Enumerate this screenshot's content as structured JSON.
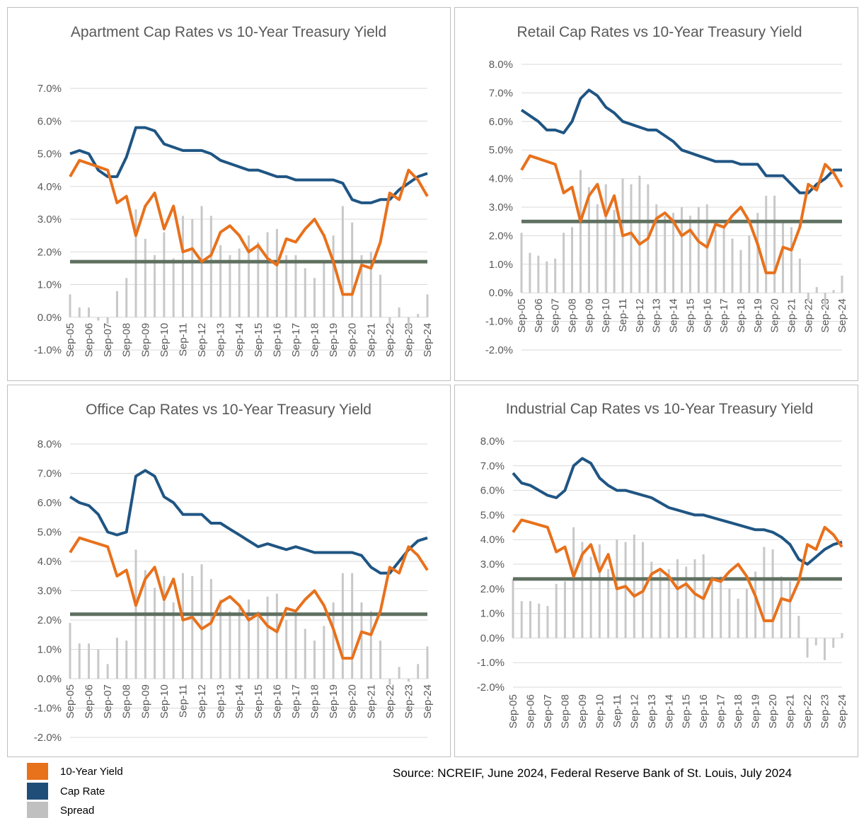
{
  "chart_data": [
    {
      "type": "line-bar",
      "title": "Apartment Cap Rates vs 10-Year Treasury Yield",
      "categories": [
        "Sep-05",
        null,
        "Sep-06",
        null,
        "Sep-07",
        null,
        "Sep-08",
        null,
        "Sep-09",
        null,
        "Sep-10",
        null,
        "Sep-11",
        null,
        "Sep-12",
        null,
        "Sep-13",
        null,
        "Sep-14",
        null,
        "Sep-15",
        null,
        "Sep-16",
        null,
        "Sep-17",
        null,
        "Sep-18",
        null,
        "Sep-19",
        null,
        "Sep-20",
        null,
        "Sep-21",
        null,
        "Sep-22",
        null,
        "Sep-23",
        null,
        "Sep-24"
      ],
      "series": [
        {
          "kind": "bar",
          "color": "#c8c8c8",
          "values": [
            0.7,
            0.3,
            0.3,
            -0.1,
            -0.2,
            0.8,
            1.2,
            3.3,
            2.4,
            1.9,
            2.6,
            1.8,
            3.1,
            3.0,
            3.4,
            3.1,
            2.2,
            1.9,
            2.1,
            2.5,
            2.3,
            2.6,
            2.7,
            1.9,
            1.9,
            1.5,
            1.2,
            1.7,
            2.5,
            3.4,
            2.9,
            1.9,
            2.0,
            1.3,
            -0.2,
            0.3,
            -0.4,
            0.1,
            0.7
          ]
        },
        {
          "kind": "line",
          "color": "#1f5583",
          "values": [
            5.0,
            5.1,
            5.0,
            4.5,
            4.3,
            4.3,
            4.9,
            5.8,
            5.8,
            5.7,
            5.3,
            5.2,
            5.1,
            5.1,
            5.1,
            5.0,
            4.8,
            4.7,
            4.6,
            4.5,
            4.5,
            4.4,
            4.3,
            4.3,
            4.2,
            4.2,
            4.2,
            4.2,
            4.2,
            4.1,
            3.6,
            3.5,
            3.5,
            3.6,
            3.6,
            3.9,
            4.1,
            4.3,
            4.4
          ]
        },
        {
          "kind": "line",
          "color": "#e8711c",
          "values": [
            4.3,
            4.8,
            4.7,
            4.6,
            4.5,
            3.5,
            3.7,
            2.5,
            3.4,
            3.8,
            2.7,
            3.4,
            2.0,
            2.1,
            1.7,
            1.9,
            2.6,
            2.8,
            2.5,
            2.0,
            2.2,
            1.8,
            1.6,
            2.4,
            2.3,
            2.7,
            3.0,
            2.5,
            1.7,
            0.7,
            0.7,
            1.6,
            1.5,
            2.3,
            3.8,
            3.6,
            4.5,
            4.2,
            3.7
          ]
        }
      ],
      "average_line": {
        "value": 1.7,
        "color": "#5f7060"
      },
      "ylim": [
        -1,
        7
      ],
      "yticks": [
        {
          "value": -1,
          "label": "-1.0%"
        },
        {
          "value": 0,
          "label": "0.0%"
        },
        {
          "value": 1,
          "label": "1.0%"
        },
        {
          "value": 2,
          "label": "2.0%"
        },
        {
          "value": 3,
          "label": "3.0%"
        },
        {
          "value": 4,
          "label": "4.0%"
        },
        {
          "value": 5,
          "label": "5.0%"
        },
        {
          "value": 6,
          "label": "6.0%"
        },
        {
          "value": 7,
          "label": "7.0%"
        }
      ],
      "grid": true
    },
    {
      "type": "line-bar",
      "title": "Retail Cap Rates vs 10-Year Treasury Yield",
      "categories": [
        "Sep-05",
        null,
        "Sep-06",
        null,
        "Sep-07",
        null,
        "Sep-08",
        null,
        "Sep-09",
        null,
        "Sep-10",
        null,
        "Sep-11",
        null,
        "Sep-12",
        null,
        "Sep-13",
        null,
        "Sep-14",
        null,
        "Sep-15",
        null,
        "Sep-16",
        null,
        "Sep-17",
        null,
        "Sep-18",
        null,
        "Sep-19",
        null,
        "Sep-20",
        null,
        "Sep-21",
        null,
        "Sep-22",
        null,
        "Sep-23",
        null,
        "Sep-24"
      ],
      "series": [
        {
          "kind": "bar",
          "color": "#c8c8c8",
          "values": [
            2.1,
            1.4,
            1.3,
            1.1,
            1.2,
            2.1,
            2.3,
            4.3,
            3.7,
            3.1,
            3.8,
            2.9,
            4.0,
            3.8,
            4.1,
            3.8,
            3.1,
            2.7,
            2.8,
            3.0,
            2.7,
            3.0,
            3.1,
            2.2,
            2.3,
            1.9,
            1.5,
            2.0,
            2.8,
            3.4,
            3.4,
            2.5,
            2.3,
            1.2,
            -0.3,
            0.2,
            -0.5,
            0.1,
            0.6
          ]
        },
        {
          "kind": "line",
          "color": "#1f5583",
          "values": [
            6.4,
            6.2,
            6.0,
            5.7,
            5.7,
            5.6,
            6.0,
            6.8,
            7.1,
            6.9,
            6.5,
            6.3,
            6.0,
            5.9,
            5.8,
            5.7,
            5.7,
            5.5,
            5.3,
            5.0,
            4.9,
            4.8,
            4.7,
            4.6,
            4.6,
            4.6,
            4.5,
            4.5,
            4.5,
            4.1,
            4.1,
            4.1,
            3.8,
            3.5,
            3.5,
            3.8,
            4.0,
            4.3,
            4.3
          ]
        },
        {
          "kind": "line",
          "color": "#e8711c",
          "values": [
            4.3,
            4.8,
            4.7,
            4.6,
            4.5,
            3.5,
            3.7,
            2.5,
            3.4,
            3.8,
            2.7,
            3.4,
            2.0,
            2.1,
            1.7,
            1.9,
            2.6,
            2.8,
            2.5,
            2.0,
            2.2,
            1.8,
            1.6,
            2.4,
            2.3,
            2.7,
            3.0,
            2.5,
            1.7,
            0.7,
            0.7,
            1.6,
            1.5,
            2.3,
            3.8,
            3.6,
            4.5,
            4.2,
            3.7
          ]
        }
      ],
      "average_line": {
        "value": 2.5,
        "color": "#5f7060"
      },
      "ylim": [
        -2,
        8
      ],
      "yticks": [
        {
          "value": -2,
          "label": "-2.0%"
        },
        {
          "value": -1,
          "label": "-1.0%"
        },
        {
          "value": 0,
          "label": "0.0%"
        },
        {
          "value": 1,
          "label": "1.0%"
        },
        {
          "value": 2,
          "label": "2.0%"
        },
        {
          "value": 3,
          "label": "3.0%"
        },
        {
          "value": 4,
          "label": "4.0%"
        },
        {
          "value": 5,
          "label": "5.0%"
        },
        {
          "value": 6,
          "label": "6.0%"
        },
        {
          "value": 7,
          "label": "7.0%"
        },
        {
          "value": 8,
          "label": "8.0%"
        }
      ],
      "grid": true
    },
    {
      "type": "line-bar",
      "title": "Office Cap Rates vs 10-Year Treasury Yield",
      "categories": [
        "Sep-05",
        null,
        "Sep-06",
        null,
        "Sep-07",
        null,
        "Sep-08",
        null,
        "Sep-09",
        null,
        "Sep-10",
        null,
        "Sep-11",
        null,
        "Sep-12",
        null,
        "Sep-13",
        null,
        "Sep-14",
        null,
        "Sep-15",
        null,
        "Sep-16",
        null,
        "Sep-17",
        null,
        "Sep-18",
        null,
        "Sep-19",
        null,
        "Sep-20",
        null,
        "Sep-21",
        null,
        "Sep-22",
        null,
        "Sep-23",
        null,
        "Sep-24"
      ],
      "series": [
        {
          "kind": "bar",
          "color": "#c8c8c8",
          "values": [
            1.9,
            1.2,
            1.2,
            1.0,
            0.5,
            1.4,
            1.3,
            4.4,
            3.7,
            3.1,
            3.5,
            2.6,
            3.6,
            3.5,
            3.9,
            3.4,
            2.7,
            2.3,
            2.4,
            2.7,
            2.3,
            2.8,
            2.9,
            2.0,
            2.2,
            1.7,
            1.3,
            1.8,
            2.6,
            3.6,
            3.6,
            2.6,
            2.3,
            1.3,
            -0.2,
            0.4,
            -0.1,
            0.5,
            1.1
          ]
        },
        {
          "kind": "line",
          "color": "#1f5583",
          "values": [
            6.2,
            6.0,
            5.9,
            5.6,
            5.0,
            4.9,
            5.0,
            6.9,
            7.1,
            6.9,
            6.2,
            6.0,
            5.6,
            5.6,
            5.6,
            5.3,
            5.3,
            5.1,
            4.9,
            4.7,
            4.5,
            4.6,
            4.5,
            4.4,
            4.5,
            4.4,
            4.3,
            4.3,
            4.3,
            4.3,
            4.3,
            4.2,
            3.8,
            3.6,
            3.6,
            4.0,
            4.4,
            4.7,
            4.8
          ]
        },
        {
          "kind": "line",
          "color": "#e8711c",
          "values": [
            4.3,
            4.8,
            4.7,
            4.6,
            4.5,
            3.5,
            3.7,
            2.5,
            3.4,
            3.8,
            2.7,
            3.4,
            2.0,
            2.1,
            1.7,
            1.9,
            2.6,
            2.8,
            2.5,
            2.0,
            2.2,
            1.8,
            1.6,
            2.4,
            2.3,
            2.7,
            3.0,
            2.5,
            1.7,
            0.7,
            0.7,
            1.6,
            1.5,
            2.3,
            3.8,
            3.6,
            4.5,
            4.2,
            3.7
          ]
        }
      ],
      "average_line": {
        "value": 2.2,
        "color": "#5f7060"
      },
      "ylim": [
        -2,
        8
      ],
      "yticks": [
        {
          "value": -2,
          "label": "-2.0%"
        },
        {
          "value": -1,
          "label": "-1.0%"
        },
        {
          "value": 0,
          "label": "0.0%"
        },
        {
          "value": 1,
          "label": "1.0%"
        },
        {
          "value": 2,
          "label": "2.0%"
        },
        {
          "value": 3,
          "label": "3.0%"
        },
        {
          "value": 4,
          "label": "4.0%"
        },
        {
          "value": 5,
          "label": "5.0%"
        },
        {
          "value": 6,
          "label": "6.0%"
        },
        {
          "value": 7,
          "label": "7.0%"
        },
        {
          "value": 8,
          "label": "8.0%"
        }
      ],
      "grid": true
    },
    {
      "type": "line-bar",
      "title": "Industrial Cap Rates vs 10-Year Treasury Yield",
      "categories": [
        "Sep-05",
        null,
        "Sep-06",
        null,
        "Sep-07",
        null,
        "Sep-08",
        null,
        "Sep-09",
        null,
        "Sep-10",
        null,
        "Sep-11",
        null,
        "Sep-12",
        null,
        "Sep-13",
        null,
        "Sep-14",
        null,
        "Sep-15",
        null,
        "Sep-16",
        null,
        "Sep-17",
        null,
        "Sep-18",
        null,
        "Sep-19",
        null,
        "Sep-20",
        null,
        "Sep-21",
        null,
        "Sep-22",
        null,
        "Sep-23",
        null,
        "Sep-24"
      ],
      "series": [
        {
          "kind": "bar",
          "color": "#c8c8c8",
          "values": [
            2.4,
            1.5,
            1.5,
            1.4,
            1.3,
            2.2,
            2.3,
            4.5,
            3.9,
            3.3,
            3.8,
            2.8,
            4.0,
            3.9,
            4.2,
            3.9,
            3.1,
            2.7,
            2.8,
            3.2,
            2.9,
            3.2,
            3.4,
            2.5,
            2.5,
            2.0,
            1.6,
            2.0,
            2.7,
            3.7,
            3.6,
            2.5,
            2.3,
            0.9,
            -0.8,
            -0.3,
            -0.9,
            -0.4,
            0.2
          ]
        },
        {
          "kind": "line",
          "color": "#1f5583",
          "values": [
            6.7,
            6.3,
            6.2,
            6.0,
            5.8,
            5.7,
            6.0,
            7.0,
            7.3,
            7.1,
            6.5,
            6.2,
            6.0,
            6.0,
            5.9,
            5.8,
            5.7,
            5.5,
            5.3,
            5.2,
            5.1,
            5.0,
            5.0,
            4.9,
            4.8,
            4.7,
            4.6,
            4.5,
            4.4,
            4.4,
            4.3,
            4.1,
            3.8,
            3.2,
            3.0,
            3.3,
            3.6,
            3.8,
            3.9
          ]
        },
        {
          "kind": "line",
          "color": "#e8711c",
          "values": [
            4.3,
            4.8,
            4.7,
            4.6,
            4.5,
            3.5,
            3.7,
            2.5,
            3.4,
            3.8,
            2.7,
            3.4,
            2.0,
            2.1,
            1.7,
            1.9,
            2.6,
            2.8,
            2.5,
            2.0,
            2.2,
            1.8,
            1.6,
            2.4,
            2.3,
            2.7,
            3.0,
            2.5,
            1.7,
            0.7,
            0.7,
            1.6,
            1.5,
            2.3,
            3.8,
            3.6,
            4.5,
            4.2,
            3.7
          ]
        }
      ],
      "average_line": {
        "value": 2.4,
        "color": "#5f7060"
      },
      "ylim": [
        -2,
        8
      ],
      "yticks": [
        {
          "value": -2,
          "label": "-2.0%"
        },
        {
          "value": -1,
          "label": "-1.0%"
        },
        {
          "value": 0,
          "label": "0.0%"
        },
        {
          "value": 1,
          "label": "1.0%"
        },
        {
          "value": 2,
          "label": "2.0%"
        },
        {
          "value": 3,
          "label": "3.0%"
        },
        {
          "value": 4,
          "label": "4.0%"
        },
        {
          "value": 5,
          "label": "5.0%"
        },
        {
          "value": 6,
          "label": "6.0%"
        },
        {
          "value": 7,
          "label": "7.0%"
        },
        {
          "value": 8,
          "label": "8.0%"
        }
      ],
      "grid": true
    }
  ],
  "legend": [
    {
      "name": "10-Year Yield",
      "color": "#e8711c"
    },
    {
      "name": "Cap Rate",
      "color": "#1f4e79"
    },
    {
      "name": "Spread",
      "color": "#c0c0c0"
    }
  ],
  "source": "Source: NCREIF, June 2024, Federal Reserve Bank of St. Louis, July 2024"
}
